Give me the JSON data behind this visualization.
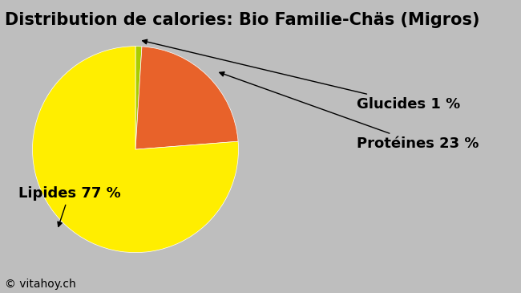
{
  "title": "Distribution de calories: Bio Familie-Chäs (Migros)",
  "slices": [
    {
      "label": "Glucides 1 %",
      "value": 1,
      "color": "#AACC00"
    },
    {
      "label": "Protéines 23 %",
      "value": 23,
      "color": "#E8622A"
    },
    {
      "label": "Lipides 77 %",
      "value": 77,
      "color": "#FFEE00"
    }
  ],
  "background_color": "#BEBEBE",
  "title_fontsize": 15,
  "label_fontsize": 13,
  "watermark": "© vitahoy.ch",
  "watermark_fontsize": 10
}
